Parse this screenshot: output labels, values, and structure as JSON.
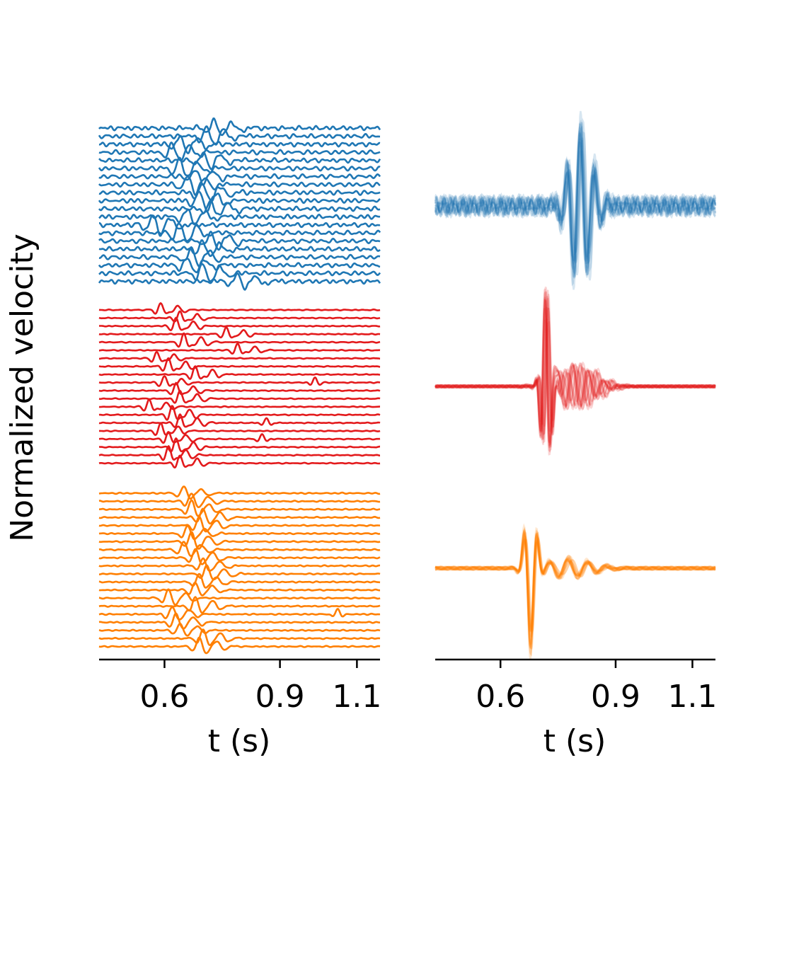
{
  "figure": {
    "ylabel": "Normalized velocity"
  },
  "chart_data": [
    {
      "type": "line",
      "panel": "left",
      "xlabel": "t (s)",
      "xlim": [
        0.43,
        1.16
      ],
      "xticks": [
        0.6,
        0.9,
        1.1
      ],
      "xtick_labels": [
        "0.6",
        "0.9",
        "1.1"
      ],
      "grid": false,
      "groups": [
        {
          "color": "#1f77b4",
          "n_traces": 20,
          "arrivals": [
            0.73,
            0.71,
            0.64,
            0.62,
            0.7,
            0.64,
            0.68,
            0.66,
            0.7,
            0.69,
            0.72,
            0.66,
            0.57,
            0.64,
            0.72,
            0.7,
            0.67,
            0.66,
            0.7,
            0.79
          ]
        },
        {
          "color": "#e31a1c",
          "n_traces": 20,
          "arrivals": [
            0.59,
            0.64,
            0.63,
            0.76,
            0.65,
            0.79,
            0.58,
            0.61,
            0.68,
            0.6,
            0.63,
            0.64,
            0.56,
            0.62,
            0.64,
            0.59,
            0.61,
            0.63,
            0.61,
            0.64
          ]
        },
        {
          "color": "#ff7f00",
          "n_traces": 20,
          "arrivals": [
            0.65,
            0.67,
            0.67,
            0.7,
            0.69,
            0.66,
            0.67,
            0.65,
            0.68,
            0.7,
            0.71,
            0.69,
            0.68,
            0.61,
            0.68,
            0.62,
            0.63,
            0.64,
            0.7,
            0.69
          ]
        }
      ]
    },
    {
      "type": "line",
      "panel": "right",
      "xlabel": "t (s)",
      "xlim": [
        0.43,
        1.16
      ],
      "xticks": [
        0.6,
        0.9,
        1.1
      ],
      "xtick_labels": [
        "0.6",
        "0.9",
        "1.1"
      ],
      "grid": false,
      "groups": [
        {
          "color": "#1f77b4",
          "n_traces": 20,
          "peak_time": 0.81,
          "overlay": "semi-transparent stacked"
        },
        {
          "color": "#e31a1c",
          "n_traces": 20,
          "peak_time": 0.72,
          "overlay": "semi-transparent stacked"
        },
        {
          "color": "#ff7f00",
          "n_traces": 20,
          "peak_time": 0.68,
          "overlay": "semi-transparent stacked"
        }
      ]
    }
  ]
}
